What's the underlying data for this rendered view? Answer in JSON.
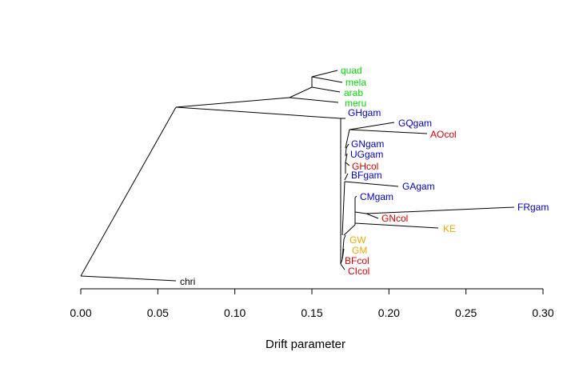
{
  "chart_data": {
    "type": "tree",
    "xlabel": "Drift parameter",
    "xlim": [
      0.0,
      0.3
    ],
    "xticks": [
      "0.00",
      "0.05",
      "0.10",
      "0.15",
      "0.20",
      "0.25",
      "0.30"
    ],
    "grid": false,
    "colors": {
      "outgroup": "#000000",
      "green": "#00dd00",
      "blue": "#0000cc",
      "red": "#dd0000",
      "orange": "#f0a800"
    },
    "tips": [
      {
        "name": "quad",
        "x": 0.167,
        "color": "green"
      },
      {
        "name": "mela",
        "x": 0.17,
        "color": "green"
      },
      {
        "name": "arab",
        "x": 0.167,
        "color": "green"
      },
      {
        "name": "meru",
        "x": 0.167,
        "color": "green"
      },
      {
        "name": "GHgam",
        "x": 0.172,
        "color": "blue"
      },
      {
        "name": "GQgam",
        "x": 0.204,
        "color": "blue"
      },
      {
        "name": "AOcol",
        "x": 0.226,
        "color": "red"
      },
      {
        "name": "GNgam",
        "x": 0.175,
        "color": "blue"
      },
      {
        "name": "UGgam",
        "x": 0.174,
        "color": "blue"
      },
      {
        "name": "GHcol",
        "x": 0.176,
        "color": "red"
      },
      {
        "name": "BFgam",
        "x": 0.174,
        "color": "blue"
      },
      {
        "name": "GAgam",
        "x": 0.208,
        "color": "blue"
      },
      {
        "name": "CMgam",
        "x": 0.181,
        "color": "blue"
      },
      {
        "name": "FRgam",
        "x": 0.282,
        "color": "blue"
      },
      {
        "name": "GNcol",
        "x": 0.192,
        "color": "red"
      },
      {
        "name": "KE",
        "x": 0.234,
        "color": "orange"
      },
      {
        "name": "GW",
        "x": 0.174,
        "color": "orange"
      },
      {
        "name": "GM",
        "x": 0.176,
        "color": "orange"
      },
      {
        "name": "BFcol",
        "x": 0.171,
        "color": "red"
      },
      {
        "name": "CIcol",
        "x": 0.173,
        "color": "red"
      },
      {
        "name": "chri",
        "x": 0.063,
        "color": "outgroup"
      }
    ]
  }
}
